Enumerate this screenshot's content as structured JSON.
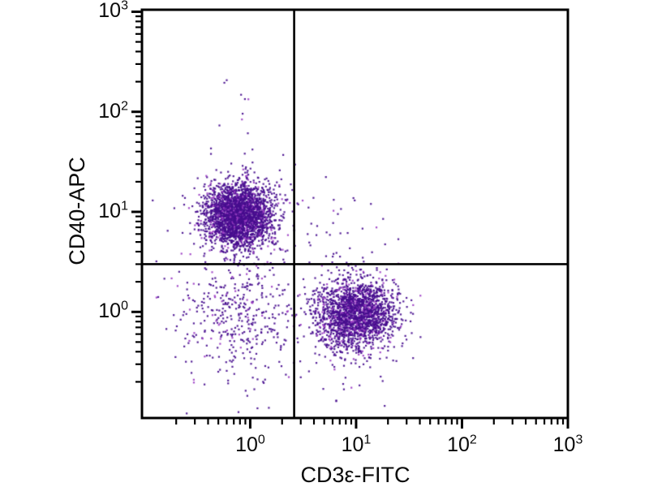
{
  "figure": {
    "background": "#ffffff",
    "axis_color": "#000000",
    "text_color": "#0a0a0a",
    "dot_color": "#470d8e",
    "dot_color_alt": "#9c3ec4"
  },
  "chart_data": {
    "type": "scatter",
    "subtype": "flow-cytometry-quadrant-dot-plot",
    "title": "",
    "xlabel": "CD3ε-FITC",
    "ylabel": "CD40-APC",
    "x_scale": "log",
    "y_scale": "log",
    "x_range": [
      0.095,
      1000
    ],
    "y_range": [
      0.087,
      1047
    ],
    "grid": false,
    "legend": null,
    "x_ticks": [
      {
        "value": 1,
        "base": "10",
        "exp": "0"
      },
      {
        "value": 10,
        "base": "10",
        "exp": "1"
      },
      {
        "value": 100,
        "base": "10",
        "exp": "2"
      },
      {
        "value": 1000,
        "base": "10",
        "exp": "3"
      }
    ],
    "y_ticks": [
      {
        "value": 1,
        "base": "10",
        "exp": "0"
      },
      {
        "value": 10,
        "base": "10",
        "exp": "1"
      },
      {
        "value": 100,
        "base": "10",
        "exp": "2"
      },
      {
        "value": 1000,
        "base": "10",
        "exp": "3"
      }
    ],
    "minor_tick_decades": [
      -1,
      0,
      1,
      2
    ],
    "quadrant_gates": {
      "x": 2.6,
      "y": 3.0
    },
    "populations": [
      {
        "name": "upper-left dense cluster",
        "center": [
          0.78,
          9.2
        ],
        "sigma_log10": [
          0.16,
          0.155
        ],
        "count": 2700
      },
      {
        "name": "upper-left upward tail",
        "center": [
          0.85,
          13
        ],
        "sigma_log10": [
          0.22,
          0.42
        ],
        "count": 70
      },
      {
        "name": "lower-right dense cluster",
        "center": [
          9.8,
          0.95
        ],
        "sigma_log10": [
          0.185,
          0.175
        ],
        "count": 2000
      },
      {
        "name": "lower-right low tail",
        "center": [
          9.0,
          0.55
        ],
        "sigma_log10": [
          0.25,
          0.3
        ],
        "count": 50
      },
      {
        "name": "lower-left diffuse cluster",
        "center": [
          0.75,
          0.95
        ],
        "sigma_log10": [
          0.3,
          0.32
        ],
        "count": 420
      },
      {
        "name": "upper-right sparse",
        "center": [
          5.0,
          6.5
        ],
        "sigma_log10": [
          0.28,
          0.24
        ],
        "count": 38
      },
      {
        "name": "low debris scatter",
        "center": [
          2.2,
          0.35
        ],
        "sigma_log10": [
          0.45,
          0.28
        ],
        "count": 25
      }
    ],
    "outliers": [
      [
        0.57,
        195
      ],
      [
        0.6,
        207
      ],
      [
        0.82,
        148
      ],
      [
        0.95,
        61
      ],
      [
        1.05,
        42
      ],
      [
        0.12,
        13
      ],
      [
        0.13,
        3.2
      ],
      [
        1.5,
        0.11
      ],
      [
        6.5,
        0.13
      ],
      [
        9.7,
        13
      ],
      [
        13.8,
        12
      ],
      [
        18,
        8.5
      ],
      [
        11.5,
        6.8
      ]
    ],
    "seed": 1337,
    "dot_size_px": 2.2
  }
}
